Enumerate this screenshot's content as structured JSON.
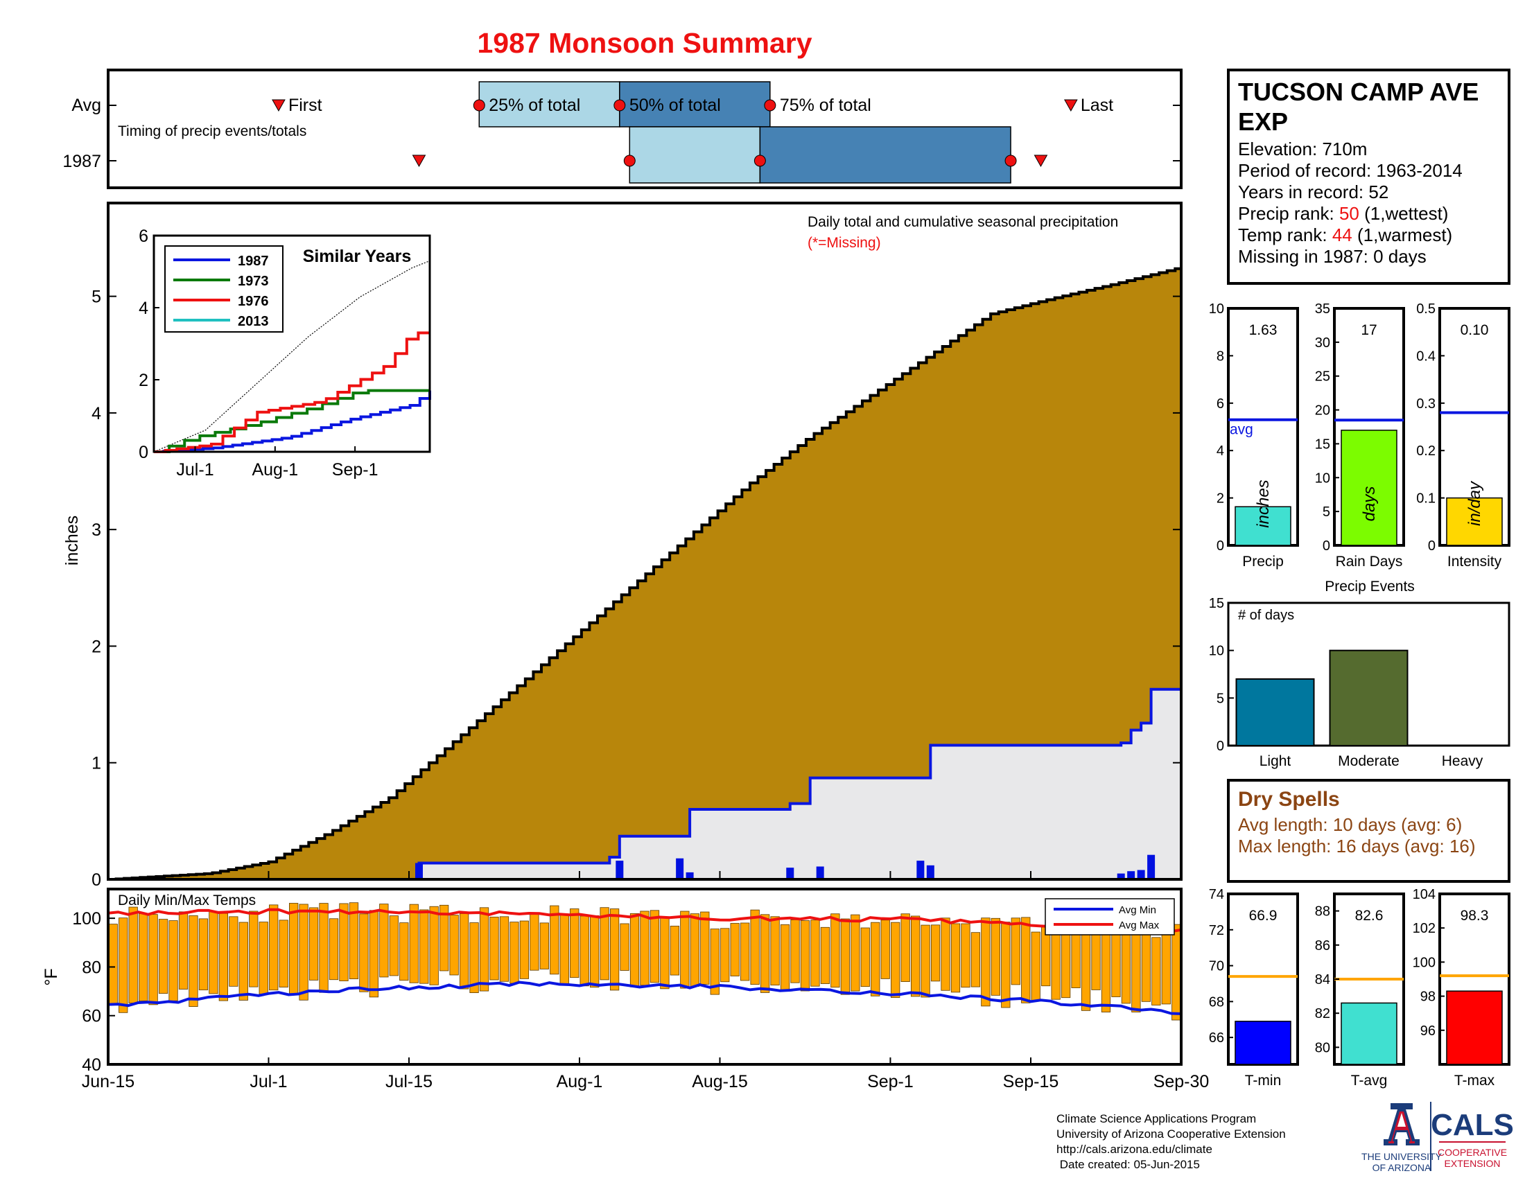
{
  "title": "1987 Monsoon Summary",
  "year": "1987",
  "timing": {
    "avg_label": "Avg",
    "year_label": "1987",
    "subtitle": "Timing of precip events/totals",
    "first_label": "First",
    "last_label": "Last",
    "q25_label": "25% of total",
    "q50_label": "50% of total",
    "q75_label": "75% of total"
  },
  "station": {
    "name_line1": "TUCSON CAMP AVE",
    "name_line2": "EXP",
    "elevation": "Elevation: 710m",
    "period": "Period of record: 1963-2014",
    "years": "Years in record: 52",
    "precip_rank_prefix": "Precip rank: ",
    "precip_rank_value": "50",
    "precip_rank_suffix": " (1,wettest)",
    "temp_rank_prefix": "Temp rank: ",
    "temp_rank_value": "44",
    "temp_rank_suffix": " (1,warmest)",
    "missing": "Missing in 1987: 0 days"
  },
  "precip_panel": {
    "title": "Daily total and cumulative seasonal precipitation",
    "missing_note": "(*=Missing)",
    "ylabel": "inches"
  },
  "inset": {
    "title": "Similar Years",
    "legend": [
      "1987",
      "1973",
      "1976",
      "2013"
    ]
  },
  "temp_panel": {
    "title": "Daily Min/Max Temps",
    "ylabel": "°F",
    "legend_min": "Avg Min",
    "legend_max": "Avg Max"
  },
  "gauges": {
    "precip": {
      "value": "1.63",
      "unit": "inches",
      "label": "Precip",
      "avg_label": "avg"
    },
    "raindays": {
      "value": "17",
      "unit": "days",
      "label": "Rain Days"
    },
    "intensity": {
      "value": "0.10",
      "unit": "in/day",
      "label": "Intensity"
    },
    "tmin": {
      "value": "66.9",
      "label": "T-min"
    },
    "tavg": {
      "value": "82.6",
      "label": "T-avg"
    },
    "tmax": {
      "value": "98.3",
      "label": "T-max"
    }
  },
  "events": {
    "title": "Precip Events",
    "ylabel": "# of days"
  },
  "dry_spells": {
    "title": "Dry Spells",
    "avg": "Avg length: 10 days (avg: 6)",
    "max": "Max length: 16 days (avg: 16)"
  },
  "footer": {
    "line1": "Climate Science Applications Program",
    "line2": "University of Arizona Cooperative Extension",
    "line3": "http://cals.arizona.edu/climate",
    "line4": " Date created: 05-Jun-2015",
    "ua_line1": "THE UNIVERSITY",
    "ua_line2": "OF ARIZONA",
    "cals": "CALS",
    "coop1": "COOPERATIVE",
    "coop2": "EXTENSION"
  },
  "colors": {
    "title": "#ee1111",
    "avg_fill": "#b8860b",
    "year_line": "#0a16e0",
    "year_fill": "#e8e8ea",
    "box_light": "#acd7e6",
    "box_dark": "#4682b4",
    "temp_bar": "#ffa500",
    "dry_text": "#8b4513",
    "precip_gauge": "#40e0d0",
    "raindays_gauge": "#7cfc00",
    "intensity_gauge": "#ffd700",
    "light_bar": "#00779e",
    "moderate_bar": "#556b2f",
    "tmin_gauge": "#0000ff",
    "tavg_gauge": "#40e0d0",
    "tmax_gauge": "#ff0000",
    "avg_temp_line": "#ffa500",
    "ua_red": "#c8102e",
    "ua_blue": "#1b3c7a"
  },
  "chart_data": [
    {
      "id": "timing",
      "type": "box",
      "x_range": [
        "Jun-15",
        "Sep-30"
      ],
      "avg": {
        "first": "Jul-2",
        "q25": "Jul-22",
        "q50": "Aug-5",
        "q75": "Aug-20",
        "last": "Sep-19"
      },
      "year": {
        "first": "Jul-16",
        "q25": "Aug-6",
        "q50": "Aug-19",
        "q75": "Sep-13",
        "last": "Sep-16"
      }
    },
    {
      "id": "precip",
      "type": "area",
      "xlabel": "",
      "ylabel": "inches",
      "x_ticks": [
        "Jun-15",
        "Jul-1",
        "Jul-15",
        "Aug-1",
        "Aug-15",
        "Sep-1",
        "Sep-15",
        "Sep-30"
      ],
      "x_tick_days": [
        0,
        16,
        30,
        47,
        61,
        78,
        92,
        107
      ],
      "ylim": [
        0,
        5.8
      ],
      "y_ticks": [
        0,
        1,
        2,
        3,
        4,
        5
      ],
      "avg_cumulative": {
        "x": [
          0,
          10,
          16,
          22,
          28,
          34,
          40,
          46,
          52,
          58,
          64,
          70,
          76,
          82,
          88,
          94,
          100,
          107
        ],
        "y": [
          0,
          0.05,
          0.15,
          0.4,
          0.7,
          1.15,
          1.6,
          2.05,
          2.5,
          2.95,
          3.4,
          3.8,
          4.15,
          4.5,
          4.85,
          4.98,
          5.1,
          5.25
        ]
      },
      "year_cumulative": {
        "x": [
          0,
          31,
          50,
          51,
          57,
          58,
          68,
          70,
          81,
          82,
          101,
          102,
          103,
          104,
          107
        ],
        "y": [
          0,
          0.14,
          0.19,
          0.37,
          0.37,
          0.6,
          0.65,
          0.87,
          0.87,
          1.15,
          1.17,
          1.28,
          1.34,
          1.63,
          1.63
        ]
      },
      "year_daily": {
        "x": [
          31,
          51,
          57,
          58,
          68,
          71,
          81,
          82,
          101,
          102,
          103,
          104
        ],
        "y": [
          0.14,
          0.16,
          0.18,
          0.06,
          0.1,
          0.11,
          0.16,
          0.12,
          0.05,
          0.07,
          0.08,
          0.21
        ]
      }
    },
    {
      "id": "similar-years",
      "type": "line",
      "title": "Similar Years",
      "x_ticks": [
        "Jul-1",
        "Aug-1",
        "Sep-1"
      ],
      "ylim": [
        0,
        6
      ],
      "y_ticks": [
        0,
        2,
        4,
        6
      ],
      "series": [
        {
          "name": "1987",
          "x": [
            0,
            22,
            52,
            76,
            100,
            107
          ],
          "y": [
            0,
            0.1,
            0.4,
            0.9,
            1.3,
            1.7
          ]
        },
        {
          "name": "1973",
          "x": [
            0,
            15,
            40,
            60,
            80,
            107
          ],
          "y": [
            0,
            0.4,
            0.8,
            1.2,
            1.7,
            1.7
          ]
        },
        {
          "name": "1976",
          "x": [
            0,
            22,
            40,
            65,
            90,
            100,
            107
          ],
          "y": [
            0,
            0.2,
            1.1,
            1.4,
            2.4,
            3.3,
            3.3
          ]
        },
        {
          "name": "2013",
          "x": [
            0,
            107
          ],
          "y": [
            0,
            1.7
          ]
        }
      ],
      "average": {
        "x": [
          0,
          20,
          40,
          60,
          80,
          100,
          107
        ],
        "y": [
          0,
          0.6,
          1.9,
          3.2,
          4.3,
          5.1,
          5.3
        ]
      }
    },
    {
      "id": "temps",
      "type": "bar",
      "title": "Daily Min/Max Temps",
      "ylim": [
        40,
        112
      ],
      "y_ticks": [
        40,
        60,
        80,
        100
      ],
      "avg_max": {
        "x": [
          0,
          20,
          40,
          60,
          80,
          100,
          107
        ],
        "y": [
          102,
          103,
          102,
          100,
          99.5,
          96,
          95
        ]
      },
      "avg_min": {
        "x": [
          0,
          20,
          40,
          60,
          80,
          100,
          107
        ],
        "y": [
          64,
          70,
          73,
          72,
          69,
          64,
          61
        ]
      }
    },
    {
      "id": "gauge-precip",
      "type": "bar",
      "label": "Precip",
      "value": 1.63,
      "average": 5.3,
      "ylim": [
        0,
        10
      ],
      "y_ticks": [
        0,
        2,
        4,
        6,
        8,
        10
      ]
    },
    {
      "id": "gauge-raindays",
      "type": "bar",
      "label": "Rain Days",
      "value": 17,
      "average": 18.5,
      "ylim": [
        0,
        35
      ],
      "y_ticks": [
        0,
        5,
        10,
        15,
        20,
        25,
        30,
        35
      ]
    },
    {
      "id": "gauge-intensity",
      "type": "bar",
      "label": "Intensity",
      "value": 0.1,
      "average": 0.28,
      "ylim": [
        0,
        0.5
      ],
      "y_ticks": [
        0,
        0.1,
        0.2,
        0.3,
        0.4,
        0.5
      ]
    },
    {
      "id": "precip-events",
      "type": "bar",
      "title": "Precip Events",
      "ylabel": "# of days",
      "categories": [
        "Light",
        "Moderate",
        "Heavy"
      ],
      "values": [
        7,
        10,
        0
      ],
      "ylim": [
        0,
        15
      ],
      "y_ticks": [
        0,
        5,
        10,
        15
      ]
    },
    {
      "id": "gauge-tmin",
      "type": "bar",
      "label": "T-min",
      "value": 66.9,
      "average": 69.4,
      "ylim": [
        64.5,
        74
      ],
      "y_ticks": [
        66,
        68,
        70,
        72,
        74
      ]
    },
    {
      "id": "gauge-tavg",
      "type": "bar",
      "label": "T-avg",
      "value": 82.6,
      "average": 84,
      "ylim": [
        79,
        89
      ],
      "y_ticks": [
        80,
        82,
        84,
        86,
        88
      ]
    },
    {
      "id": "gauge-tmax",
      "type": "bar",
      "label": "T-max",
      "value": 98.3,
      "average": 99.2,
      "ylim": [
        94,
        104
      ],
      "y_ticks": [
        96,
        98,
        100,
        102,
        104
      ]
    }
  ]
}
